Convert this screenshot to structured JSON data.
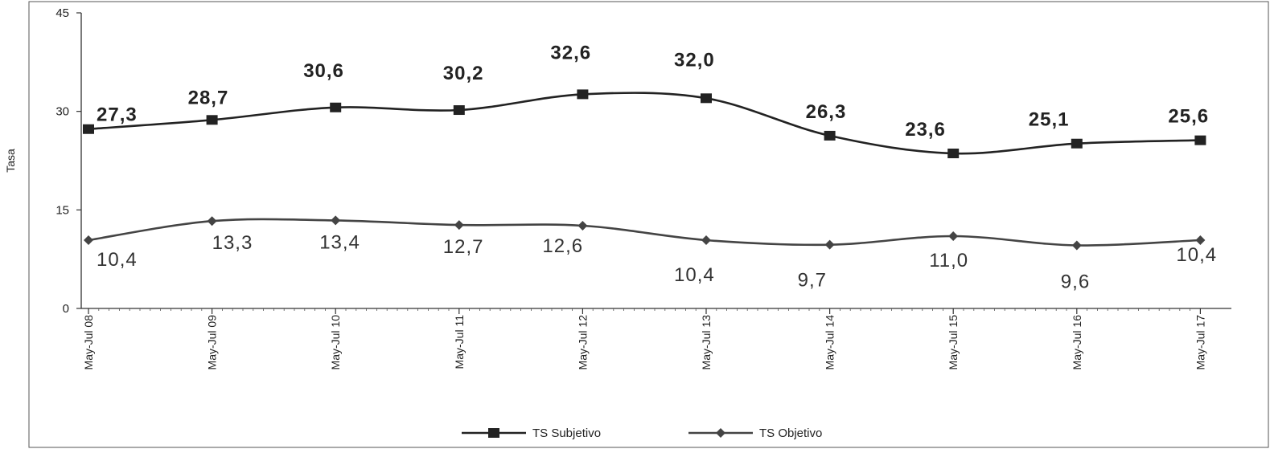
{
  "chart_data": {
    "type": "line",
    "title": "",
    "xlabel": "",
    "ylabel": "Tasa",
    "ylim": [
      0,
      45
    ],
    "yticks": [
      "0",
      "15",
      "30",
      "45"
    ],
    "categories": [
      "May-Jul 08",
      "May-Jul 09",
      "May-Jul 10",
      "May-Jul 11",
      "May-Jul 12",
      "May-Jul 13",
      "May-Jul 14",
      "May-Jul 15",
      "May-Jul 16",
      "May-Jul 17"
    ],
    "grid": false,
    "legend_position": "bottom",
    "series": [
      {
        "name": "TS Subjetivo",
        "color": "#222222",
        "marker": "square",
        "values": [
          27.3,
          28.7,
          30.6,
          30.2,
          32.6,
          32.0,
          26.3,
          23.6,
          25.1,
          25.6
        ],
        "labels": [
          "27,3",
          "28,7",
          "30,6",
          "30,2",
          "32,6",
          "32,0",
          "26,3",
          "23,6",
          "25,1",
          "25,6"
        ]
      },
      {
        "name": "TS Objetivo",
        "color": "#444444",
        "marker": "diamond",
        "values": [
          10.4,
          13.3,
          13.4,
          12.7,
          12.6,
          10.4,
          9.7,
          11.0,
          9.6,
          10.4
        ],
        "labels": [
          "10,4",
          "13,3",
          "13,4",
          "12,7",
          "12,6",
          "10,4",
          "9,7",
          "11,0",
          "9,6",
          "10,4"
        ]
      }
    ]
  }
}
